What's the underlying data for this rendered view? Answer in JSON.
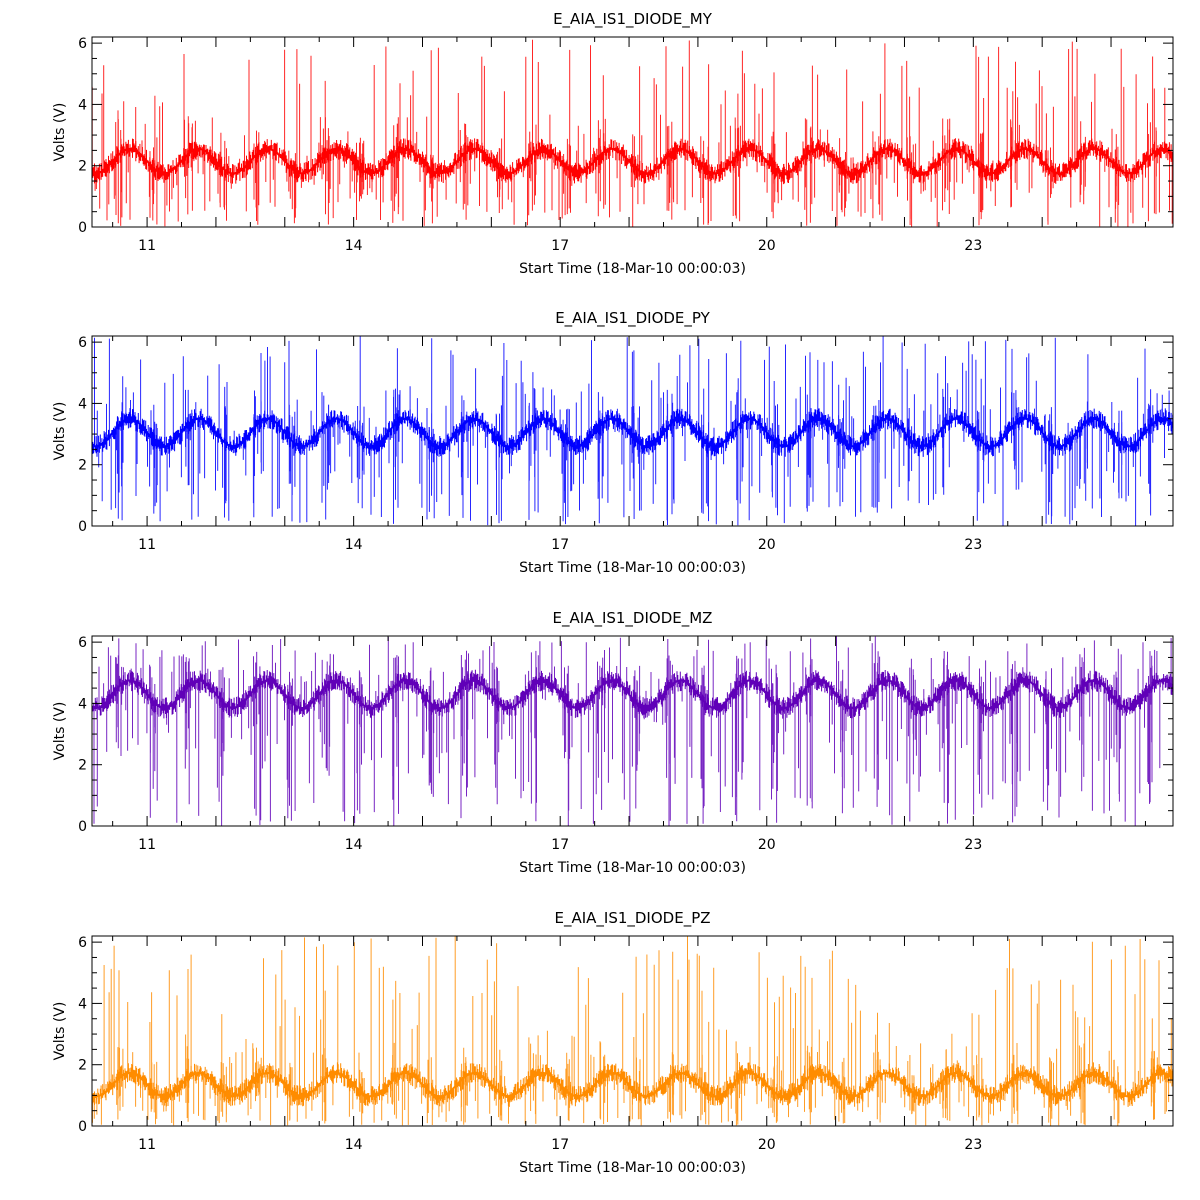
{
  "chart_data": [
    {
      "type": "line",
      "title": "E_AIA_IS1_DIODE_MY",
      "xlabel": "Start Time (18-Mar-10 00:00:03)",
      "ylabel": "Volts (V)",
      "xlim": [
        10.2,
        25.9
      ],
      "ylim": [
        0,
        6.2
      ],
      "xticks": [
        11,
        14,
        17,
        20,
        23
      ],
      "xtick_labels": [
        "11",
        "14",
        "17",
        "20",
        "23"
      ],
      "yticks": [
        0,
        2,
        4,
        6
      ],
      "ytick_labels": [
        "0",
        "2",
        "4",
        "6"
      ],
      "color": "#ff0000",
      "series": [
        {
          "name": "E_AIA_IS1_DIODE_MY",
          "baseline": 2.15,
          "amplitude": 0.4,
          "period_days": 1.0,
          "phase_day": 10.5,
          "noise_band": [
            1.6,
            3.0
          ]
        }
      ]
    },
    {
      "type": "line",
      "title": "E_AIA_IS1_DIODE_PY",
      "xlabel": "Start Time (18-Mar-10 00:00:03)",
      "ylabel": "Volts (V)",
      "xlim": [
        10.2,
        25.9
      ],
      "ylim": [
        0,
        6.2
      ],
      "xticks": [
        11,
        14,
        17,
        20,
        23
      ],
      "xtick_labels": [
        "11",
        "14",
        "17",
        "20",
        "23"
      ],
      "yticks": [
        0,
        2,
        4,
        6
      ],
      "ytick_labels": [
        "0",
        "2",
        "4",
        "6"
      ],
      "color": "#0000ff",
      "series": [
        {
          "name": "E_AIA_IS1_DIODE_PY",
          "baseline": 3.05,
          "amplitude": 0.45,
          "period_days": 1.0,
          "phase_day": 10.5,
          "noise_band": [
            2.4,
            4.3
          ]
        }
      ]
    },
    {
      "type": "line",
      "title": "E_AIA_IS1_DIODE_MZ",
      "xlabel": "Start Time (18-Mar-10 00:00:03)",
      "ylabel": "Volts (V)",
      "xlim": [
        10.2,
        25.9
      ],
      "ylim": [
        0,
        6.2
      ],
      "xticks": [
        11,
        14,
        17,
        20,
        23
      ],
      "xtick_labels": [
        "11",
        "14",
        "17",
        "20",
        "23"
      ],
      "yticks": [
        0,
        2,
        4,
        6
      ],
      "ytick_labels": [
        "0",
        "2",
        "4",
        "6"
      ],
      "color": "#6000b8",
      "series": [
        {
          "name": "E_AIA_IS1_DIODE_MZ",
          "baseline": 4.3,
          "amplitude": 0.45,
          "period_days": 1.0,
          "phase_day": 10.5,
          "noise_band": [
            3.6,
            5.1
          ]
        }
      ]
    },
    {
      "type": "line",
      "title": "E_AIA_IS1_DIODE_PZ",
      "xlabel": "Start Time (18-Mar-10 00:00:03)",
      "ylabel": "Volts (V)",
      "xlim": [
        10.2,
        25.9
      ],
      "ylim": [
        0,
        6.2
      ],
      "xticks": [
        11,
        14,
        17,
        20,
        23
      ],
      "xtick_labels": [
        "11",
        "14",
        "17",
        "20",
        "23"
      ],
      "yticks": [
        0,
        2,
        4,
        6
      ],
      "ytick_labels": [
        "0",
        "2",
        "4",
        "6"
      ],
      "color": "#ff8c00",
      "series": [
        {
          "name": "E_AIA_IS1_DIODE_PZ",
          "baseline": 1.35,
          "amplitude": 0.38,
          "period_days": 1.0,
          "phase_day": 10.5,
          "noise_band": [
            0.8,
            2.3
          ]
        }
      ]
    }
  ]
}
